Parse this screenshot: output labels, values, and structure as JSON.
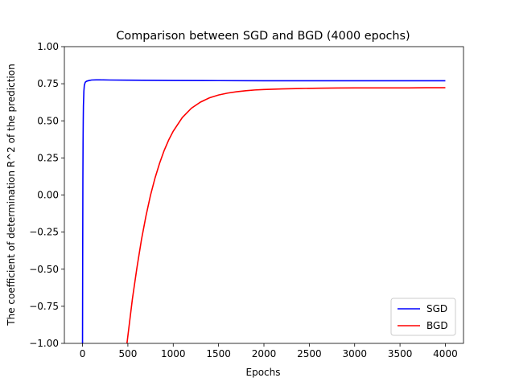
{
  "chart_data": {
    "type": "line",
    "title": "Comparison between SGD and BGD (4000 epochs)",
    "xlabel": "Epochs",
    "ylabel": "The coefficient of determination R^2 of the prediction",
    "xlim": [
      -200,
      4200
    ],
    "ylim": [
      -1.0,
      1.0
    ],
    "x_ticks": [
      0,
      500,
      1000,
      1500,
      2000,
      2500,
      3000,
      3500,
      4000
    ],
    "x_tick_labels": [
      "0",
      "500",
      "1000",
      "1500",
      "2000",
      "2500",
      "3000",
      "3500",
      "4000"
    ],
    "y_ticks": [
      -1.0,
      -0.75,
      -0.5,
      -0.25,
      0.0,
      0.25,
      0.5,
      0.75,
      1.0
    ],
    "y_tick_labels": [
      "−1.00",
      "−0.75",
      "−0.50",
      "−0.25",
      "0.00",
      "0.25",
      "0.50",
      "0.75",
      "1.00"
    ],
    "grid": false,
    "legend_position": "bottom-right",
    "series": [
      {
        "name": "SGD",
        "color": "#0000ff",
        "x": [
          0,
          2,
          4,
          6,
          8,
          10,
          15,
          20,
          30,
          40,
          50,
          75,
          100,
          150,
          200,
          300,
          500,
          1000,
          1500,
          2000,
          2500,
          3000,
          3500,
          4000
        ],
        "y": [
          -1.0,
          -0.4,
          0.1,
          0.35,
          0.5,
          0.6,
          0.7,
          0.74,
          0.76,
          0.765,
          0.768,
          0.772,
          0.775,
          0.776,
          0.776,
          0.775,
          0.774,
          0.772,
          0.771,
          0.77,
          0.77,
          0.77,
          0.77,
          0.77
        ]
      },
      {
        "name": "BGD",
        "color": "#ff0000",
        "x": [
          490,
          550,
          600,
          650,
          700,
          750,
          800,
          850,
          900,
          950,
          1000,
          1100,
          1200,
          1300,
          1400,
          1500,
          1600,
          1700,
          1800,
          1900,
          2000,
          2200,
          2400,
          2600,
          2800,
          3000,
          3200,
          3400,
          3600,
          3800,
          4000
        ],
        "y": [
          -1.0,
          -0.7,
          -0.49,
          -0.3,
          -0.14,
          0.0,
          0.116,
          0.215,
          0.3,
          0.371,
          0.43,
          0.522,
          0.585,
          0.626,
          0.655,
          0.674,
          0.687,
          0.696,
          0.703,
          0.708,
          0.711,
          0.715,
          0.718,
          0.72,
          0.721,
          0.722,
          0.722,
          0.722,
          0.722,
          0.723,
          0.723
        ]
      }
    ]
  }
}
